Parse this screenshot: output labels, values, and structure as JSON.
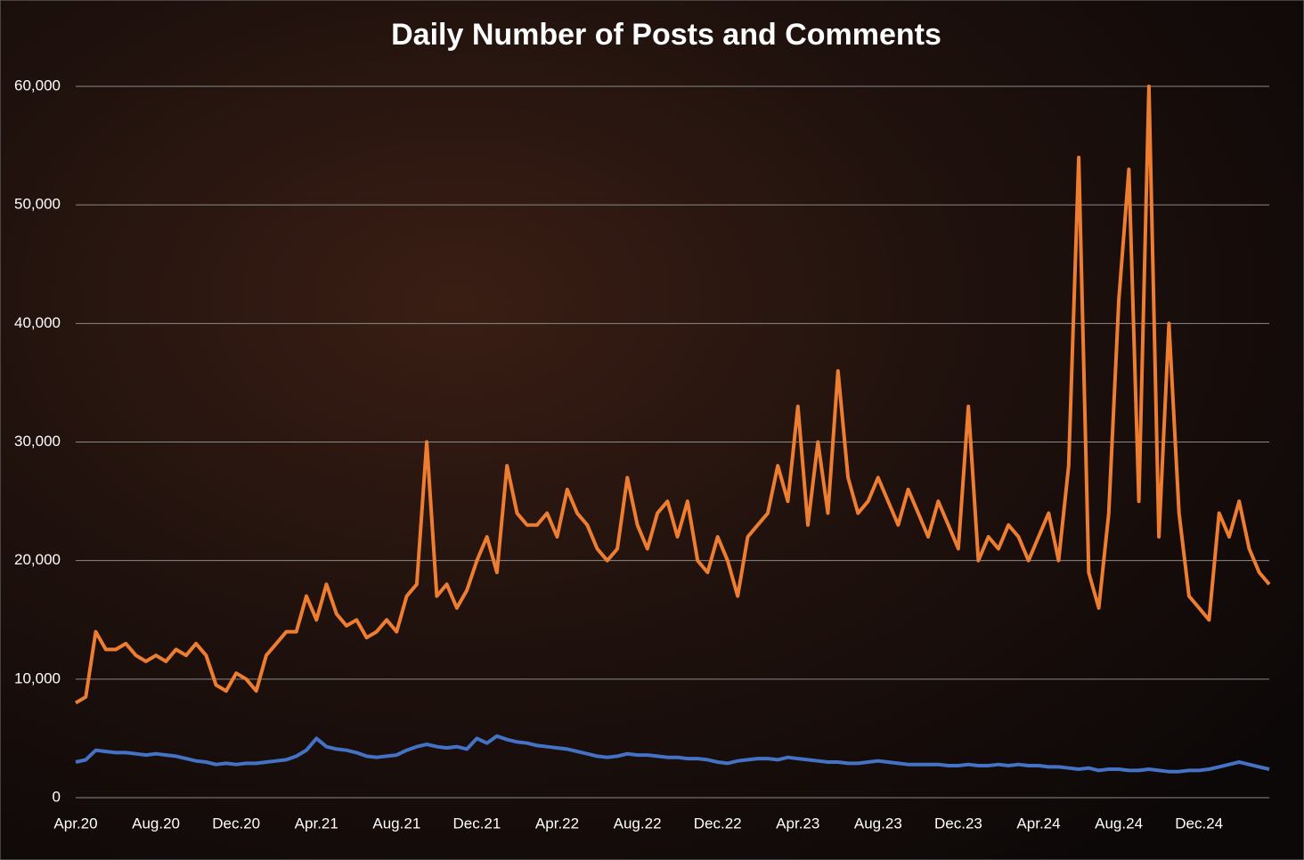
{
  "chart_data": {
    "type": "line",
    "title": "Daily Number of Posts and Comments",
    "categories": [
      "Apr.20",
      null,
      null,
      null,
      null,
      null,
      null,
      null,
      "Aug.20",
      null,
      null,
      null,
      null,
      null,
      null,
      null,
      "Dec.20",
      null,
      null,
      null,
      null,
      null,
      null,
      null,
      "Apr.21",
      null,
      null,
      null,
      null,
      null,
      null,
      null,
      "Aug.21",
      null,
      null,
      null,
      null,
      null,
      null,
      null,
      "Dec.21",
      null,
      null,
      null,
      null,
      null,
      null,
      null,
      "Apr.22",
      null,
      null,
      null,
      null,
      null,
      null,
      null,
      "Aug.22",
      null,
      null,
      null,
      null,
      null,
      null,
      null,
      "Dec.22",
      null,
      null,
      null,
      null,
      null,
      null,
      null,
      "Apr.23",
      null,
      null,
      null,
      null,
      null,
      null,
      null,
      "Aug.23",
      null,
      null,
      null,
      null,
      null,
      null,
      null,
      "Dec.23",
      null,
      null,
      null,
      null,
      null,
      null,
      null,
      "Apr.24",
      null,
      null,
      null,
      null,
      null,
      null,
      null,
      "Aug.24",
      null,
      null,
      null,
      null,
      null,
      null,
      null,
      "Dec.24",
      null,
      null,
      null,
      null,
      null,
      null,
      null
    ],
    "series": [
      {
        "color": "#ed7d31",
        "values": [
          8000,
          8500,
          14000,
          12500,
          12500,
          13000,
          12000,
          11500,
          12000,
          11500,
          12500,
          12000,
          13000,
          12000,
          9500,
          9000,
          10500,
          10000,
          9000,
          12000,
          13000,
          14000,
          14000,
          17000,
          15000,
          18000,
          15500,
          14500,
          15000,
          13500,
          14000,
          15000,
          14000,
          17000,
          18000,
          30000,
          17000,
          18000,
          16000,
          17500,
          20000,
          22000,
          19000,
          28000,
          24000,
          23000,
          23000,
          24000,
          22000,
          26000,
          24000,
          23000,
          21000,
          20000,
          21000,
          27000,
          23000,
          21000,
          24000,
          25000,
          22000,
          25000,
          20000,
          19000,
          22000,
          20000,
          17000,
          22000,
          23000,
          24000,
          28000,
          25000,
          33000,
          23000,
          30000,
          24000,
          36000,
          27000,
          24000,
          25000,
          27000,
          25000,
          23000,
          26000,
          24000,
          22000,
          25000,
          23000,
          21000,
          33000,
          20000,
          22000,
          21000,
          23000,
          22000,
          20000,
          22000,
          24000,
          20000,
          28000,
          54000,
          19000,
          16000,
          24000,
          42000,
          53000,
          25000,
          60000,
          22000,
          40000,
          24000,
          17000,
          16000,
          15000,
          24000,
          22000,
          25000,
          21000,
          19000,
          18000
        ]
      },
      {
        "color": "#4472c4",
        "values": [
          3000,
          3200,
          4000,
          3900,
          3800,
          3800,
          3700,
          3600,
          3700,
          3600,
          3500,
          3300,
          3100,
          3000,
          2800,
          2900,
          2800,
          2900,
          2900,
          3000,
          3100,
          3200,
          3500,
          4000,
          5000,
          4300,
          4100,
          4000,
          3800,
          3500,
          3400,
          3500,
          3600,
          4000,
          4300,
          4500,
          4300,
          4200,
          4300,
          4100,
          5000,
          4600,
          5200,
          4900,
          4700,
          4600,
          4400,
          4300,
          4200,
          4100,
          3900,
          3700,
          3500,
          3400,
          3500,
          3700,
          3600,
          3600,
          3500,
          3400,
          3400,
          3300,
          3300,
          3200,
          3000,
          2900,
          3100,
          3200,
          3300,
          3300,
          3200,
          3400,
          3300,
          3200,
          3100,
          3000,
          3000,
          2900,
          2900,
          3000,
          3100,
          3000,
          2900,
          2800,
          2800,
          2800,
          2800,
          2700,
          2700,
          2800,
          2700,
          2700,
          2800,
          2700,
          2800,
          2700,
          2700,
          2600,
          2600,
          2500,
          2400,
          2500,
          2300,
          2400,
          2400,
          2300,
          2300,
          2400,
          2300,
          2200,
          2200,
          2300,
          2300,
          2400,
          2600,
          2800,
          3000,
          2800,
          2600,
          2400
        ]
      }
    ],
    "ylim": [
      0,
      60000
    ],
    "yticks": [
      0,
      {
        "value": 10000,
        "label": "10,000"
      },
      {
        "value": 20000,
        "label": "20,000"
      },
      {
        "value": 30000,
        "label": "30,000"
      },
      {
        "value": 40000,
        "label": "40,000"
      },
      {
        "value": 50000,
        "label": "50,000"
      },
      {
        "value": 60000,
        "label": "60,000"
      }
    ],
    "grid": true
  }
}
